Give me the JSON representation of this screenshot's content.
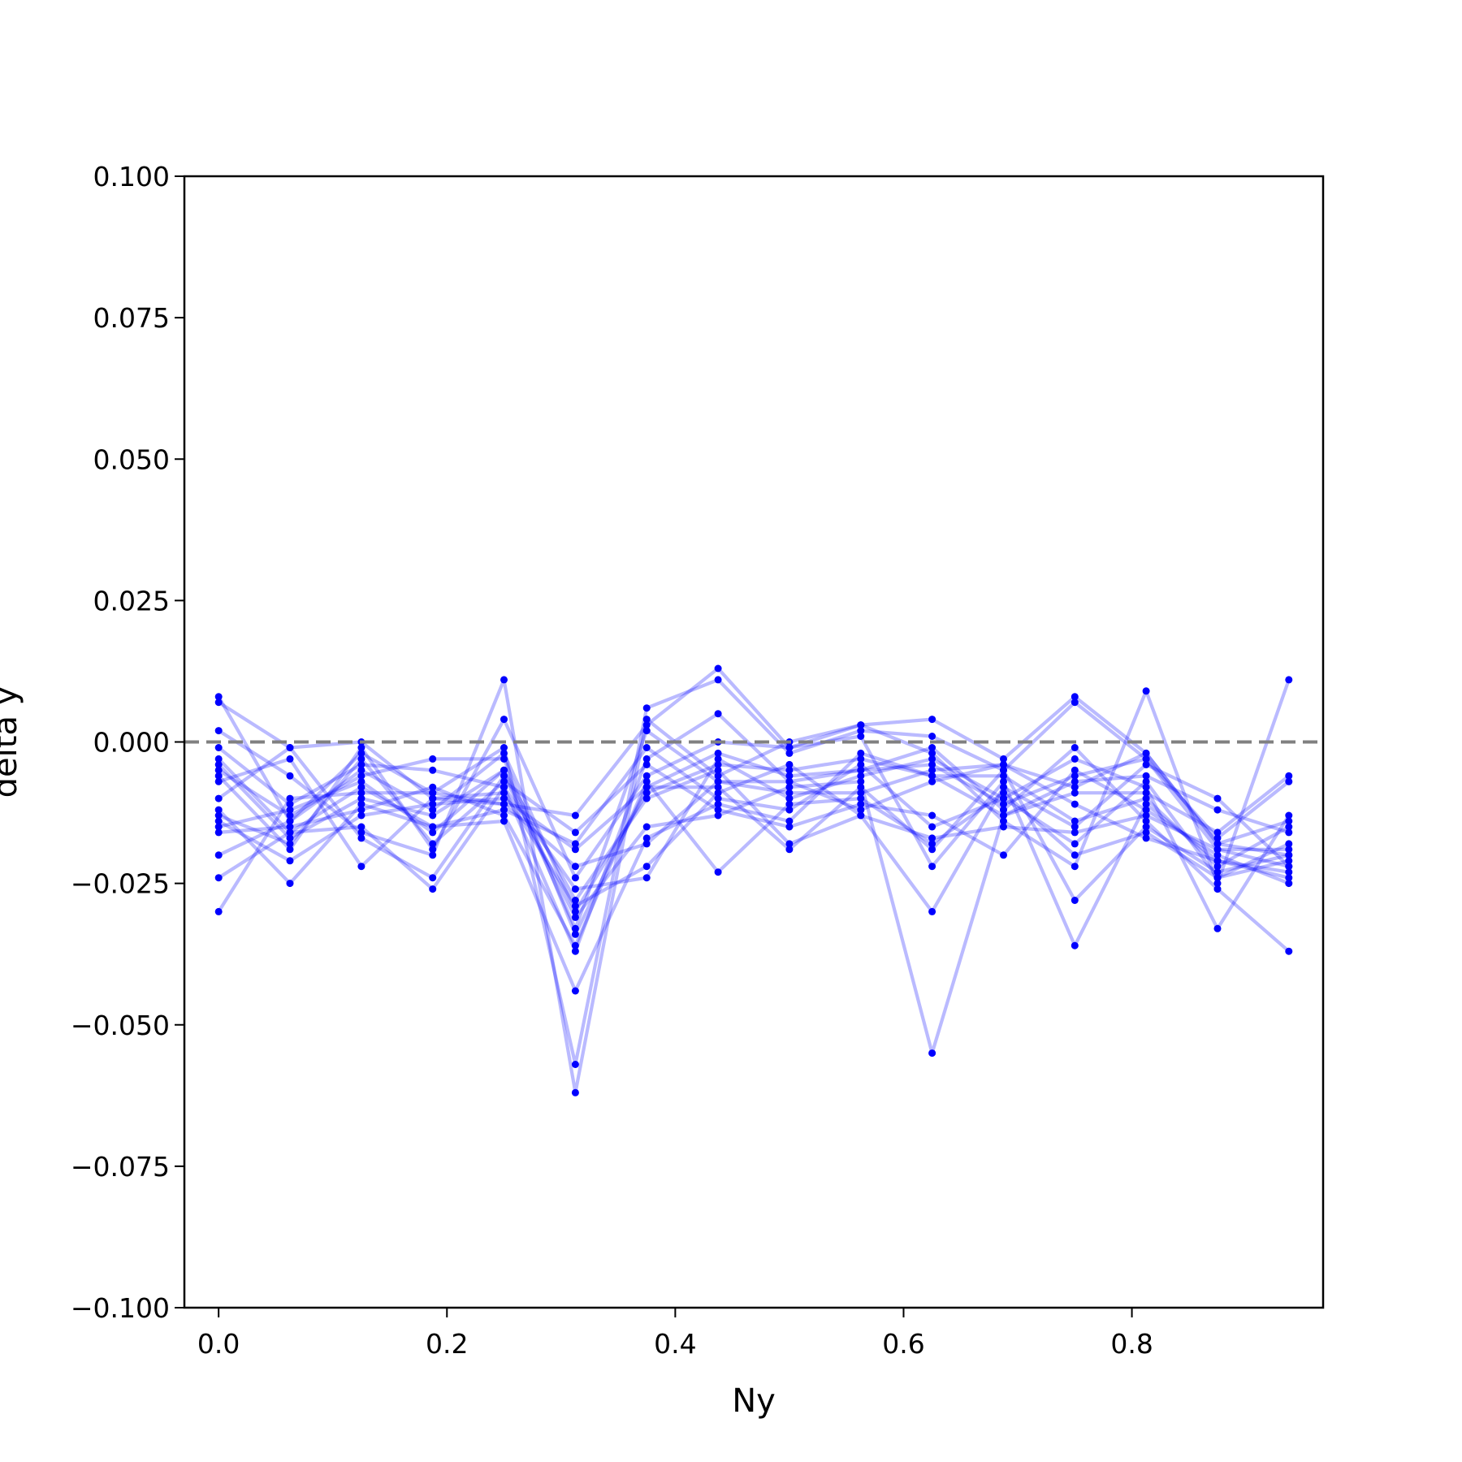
{
  "chart_data": {
    "type": "line",
    "title": "",
    "xlabel": "Ny",
    "ylabel": "delta y",
    "xlim": [
      -0.03,
      0.9675
    ],
    "ylim": [
      -0.1,
      0.1
    ],
    "x_ticks": [
      0.0,
      0.2,
      0.4,
      0.6,
      0.8
    ],
    "x_tick_labels": [
      "0.0",
      "0.2",
      "0.4",
      "0.6",
      "0.8"
    ],
    "y_ticks": [
      -0.1,
      -0.075,
      -0.05,
      -0.025,
      0.0,
      0.025,
      0.05,
      0.075,
      0.1
    ],
    "y_tick_labels": [
      "−0.100",
      "−0.075",
      "−0.050",
      "−0.025",
      "0.000",
      "0.025",
      "0.050",
      "0.075",
      "0.100"
    ],
    "reference_line": {
      "y": 0.0,
      "style": "dashed",
      "color": "#808080"
    },
    "series_color": "#0000ff",
    "grid": false,
    "legend": "none",
    "x": [
      0.0,
      0.0625,
      0.125,
      0.1875,
      0.25,
      0.3125,
      0.375,
      0.4375,
      0.5,
      0.5625,
      0.625,
      0.6875,
      0.75,
      0.8125,
      0.875,
      0.9375
    ],
    "series": [
      {
        "values": [
          0.007,
          -0.001,
          0.0,
          -0.01,
          -0.011,
          -0.013,
          0.003,
          0.013,
          -0.001,
          0.003,
          0.004,
          -0.003,
          0.008,
          -0.002,
          -0.018,
          -0.02
        ]
      },
      {
        "values": [
          0.008,
          -0.014,
          -0.002,
          -0.009,
          -0.001,
          -0.057,
          0.006,
          0.011,
          -0.002,
          0.002,
          0.001,
          -0.005,
          0.007,
          -0.003,
          -0.019,
          -0.022
        ]
      },
      {
        "values": [
          0.002,
          -0.006,
          -0.016,
          -0.02,
          0.011,
          -0.062,
          0.004,
          -0.006,
          0.0,
          0.003,
          -0.002,
          -0.014,
          -0.022,
          0.009,
          -0.025,
          0.011
        ]
      },
      {
        "values": [
          -0.001,
          -0.011,
          -0.004,
          -0.005,
          -0.008,
          -0.037,
          -0.003,
          0.005,
          -0.007,
          -0.005,
          -0.004,
          -0.011,
          -0.006,
          -0.003,
          -0.017,
          -0.007
        ]
      },
      {
        "values": [
          -0.003,
          -0.016,
          -0.008,
          -0.015,
          -0.014,
          -0.044,
          -0.017,
          -0.011,
          -0.014,
          -0.002,
          -0.006,
          -0.013,
          -0.009,
          -0.009,
          -0.016,
          -0.006
        ]
      },
      {
        "values": [
          -0.004,
          -0.017,
          -0.01,
          -0.013,
          -0.005,
          -0.028,
          -0.01,
          -0.005,
          -0.018,
          -0.013,
          -0.017,
          -0.015,
          -0.016,
          -0.013,
          -0.019,
          -0.019
        ]
      },
      {
        "values": [
          -0.005,
          -0.013,
          -0.006,
          -0.003,
          -0.003,
          -0.034,
          -0.008,
          -0.008,
          -0.019,
          -0.008,
          -0.019,
          -0.005,
          -0.028,
          -0.015,
          -0.023,
          -0.02
        ]
      },
      {
        "values": [
          -0.006,
          -0.019,
          -0.001,
          -0.019,
          0.004,
          -0.024,
          -0.006,
          0.0,
          -0.001,
          0.001,
          -0.022,
          -0.007,
          -0.036,
          -0.011,
          -0.021,
          -0.023
        ]
      },
      {
        "values": [
          -0.007,
          -0.003,
          -0.022,
          -0.01,
          -0.009,
          -0.029,
          -0.022,
          -0.009,
          -0.004,
          -0.013,
          -0.03,
          -0.008,
          -0.015,
          -0.004,
          -0.01,
          -0.022
        ]
      },
      {
        "values": [
          -0.01,
          -0.001,
          -0.017,
          -0.024,
          -0.006,
          -0.031,
          -0.015,
          -0.013,
          -0.008,
          -0.007,
          -0.055,
          -0.013,
          -0.007,
          -0.006,
          -0.012,
          -0.016
        ]
      },
      {
        "values": [
          -0.012,
          -0.025,
          -0.011,
          -0.015,
          -0.012,
          -0.018,
          -0.001,
          -0.01,
          -0.012,
          -0.004,
          -0.015,
          -0.01,
          -0.003,
          -0.008,
          -0.033,
          -0.013
        ]
      },
      {
        "values": [
          -0.013,
          -0.018,
          -0.003,
          -0.018,
          -0.007,
          -0.016,
          -0.004,
          -0.012,
          -0.015,
          -0.011,
          -0.013,
          -0.02,
          -0.005,
          -0.012,
          -0.02,
          -0.025
        ]
      },
      {
        "values": [
          -0.014,
          -0.021,
          -0.013,
          -0.011,
          -0.01,
          -0.019,
          -0.008,
          -0.002,
          -0.006,
          -0.005,
          -0.001,
          -0.012,
          -0.001,
          -0.014,
          -0.026,
          -0.037
        ]
      },
      {
        "values": [
          -0.015,
          -0.012,
          -0.007,
          -0.016,
          -0.005,
          -0.033,
          0.002,
          -0.007,
          -0.009,
          -0.009,
          -0.005,
          -0.004,
          -0.011,
          -0.017,
          -0.021,
          -0.024
        ]
      },
      {
        "values": [
          -0.016,
          -0.015,
          -0.012,
          -0.008,
          -0.013,
          -0.036,
          -0.007,
          -0.023,
          -0.011,
          -0.01,
          -0.018,
          -0.009,
          -0.02,
          -0.016,
          -0.024,
          -0.018
        ]
      },
      {
        "values": [
          -0.02,
          -0.014,
          -0.005,
          -0.012,
          -0.002,
          -0.03,
          -0.009,
          -0.004,
          -0.005,
          -0.003,
          -0.006,
          -0.006,
          -0.014,
          -0.01,
          -0.022,
          -0.015
        ]
      },
      {
        "values": [
          -0.024,
          -0.016,
          -0.015,
          -0.026,
          -0.008,
          -0.026,
          -0.024,
          -0.003,
          -0.01,
          -0.006,
          -0.003,
          -0.01,
          -0.018,
          -0.007,
          -0.024,
          -0.021
        ]
      },
      {
        "values": [
          -0.03,
          -0.01,
          -0.009,
          -0.009,
          -0.011,
          -0.022,
          -0.018,
          -0.007,
          -0.007,
          -0.012,
          -0.007,
          -0.004,
          -0.008,
          -0.002,
          -0.018,
          -0.014
        ]
      }
    ]
  }
}
